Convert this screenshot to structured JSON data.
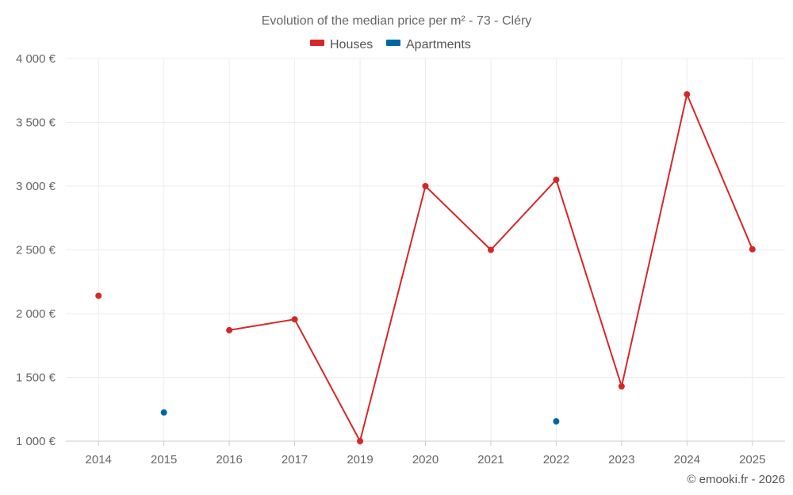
{
  "chart_data": {
    "type": "line",
    "title": "Evolution of the median price per m² - 73 - Cléry",
    "categories": [
      "2014",
      "2015",
      "2016",
      "2017",
      "2019",
      "2020",
      "2021",
      "2022",
      "2023",
      "2024",
      "2025"
    ],
    "series": [
      {
        "name": "Houses",
        "color": "#d62728",
        "values": [
          2140,
          null,
          1870,
          1955,
          1000,
          3000,
          2500,
          3050,
          1430,
          3720,
          2505
        ]
      },
      {
        "name": "Apartments",
        "color": "#0066a1",
        "values": [
          null,
          1225,
          null,
          null,
          null,
          null,
          null,
          1155,
          null,
          null,
          null
        ]
      }
    ],
    "ylim": [
      1000,
      4000
    ],
    "yticks": [
      1000,
      1500,
      2000,
      2500,
      3000,
      3500,
      4000
    ],
    "ytick_labels": [
      "1 000 €",
      "1 500 €",
      "2 000 €",
      "2 500 €",
      "3 000 €",
      "3 500 €",
      "4 000 €"
    ],
    "grid": true,
    "legend_position": "top-center",
    "xlabel": "",
    "ylabel": ""
  },
  "credit": "© emooki.fr - 2026"
}
